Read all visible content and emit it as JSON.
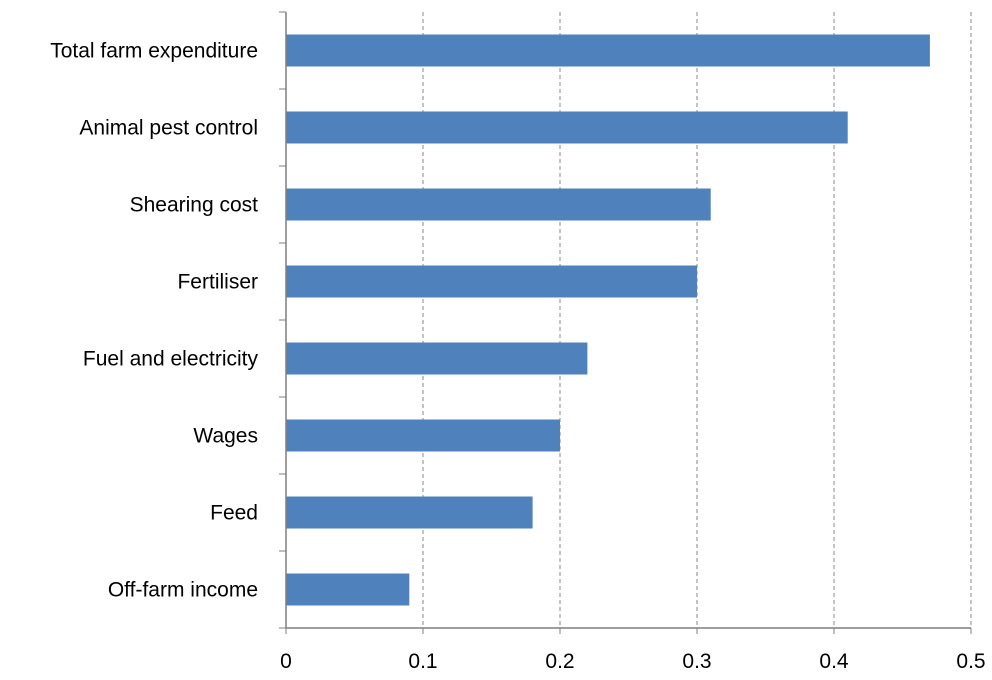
{
  "chart_data": {
    "type": "bar",
    "orientation": "horizontal",
    "title": "",
    "xlabel": "",
    "ylabel": "",
    "categories": [
      "Total farm expenditure",
      "Animal pest control",
      "Shearing cost",
      "Fertiliser",
      "Fuel and electricity",
      "Wages",
      "Feed",
      "Off-farm income"
    ],
    "values": [
      0.47,
      0.41,
      0.31,
      0.3,
      0.22,
      0.2,
      0.18,
      0.09
    ],
    "xlim": [
      0,
      0.5
    ],
    "xticks": [
      "0",
      "0.1",
      "0.2",
      "0.3",
      "0.4",
      "0.5"
    ],
    "grid": "vertical-dashed",
    "legend": "none",
    "colors": {
      "bar": "#4f81bd",
      "grid": "#888888",
      "axis": "#7f7f7f",
      "text": "#000000"
    }
  }
}
